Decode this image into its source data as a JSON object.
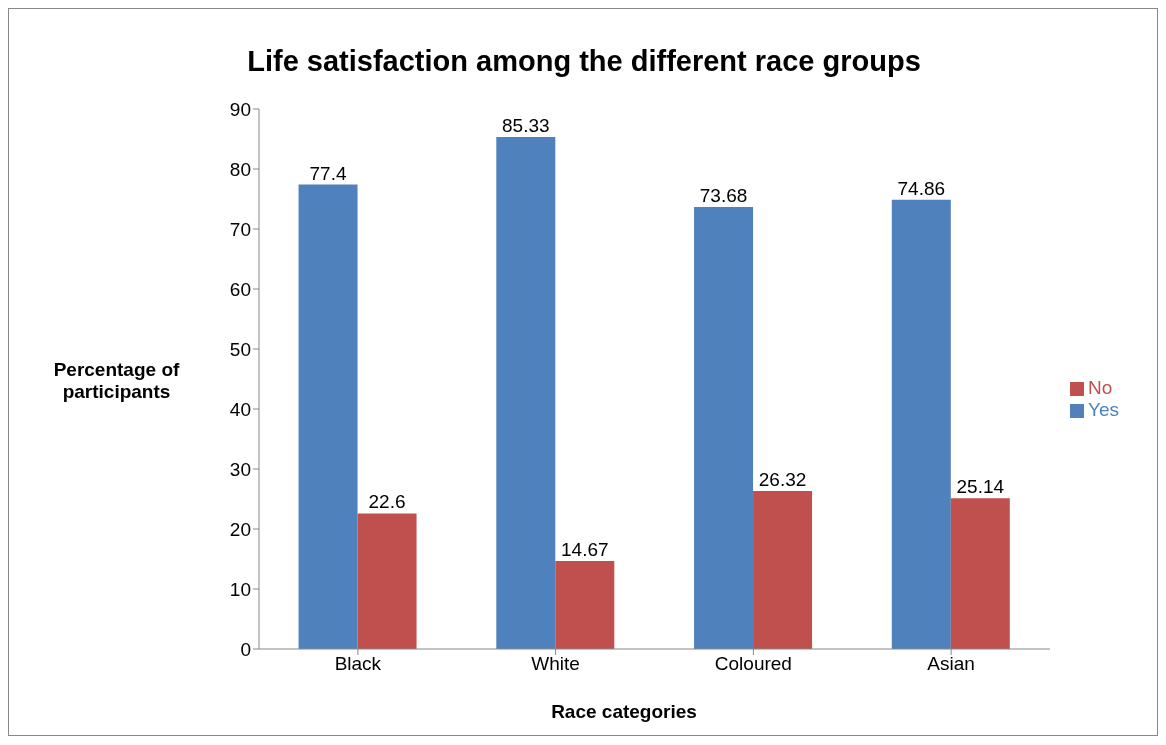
{
  "chart_data": {
    "type": "bar",
    "title": "Life satisfaction among the different race groups",
    "xlabel": "Race categories",
    "ylabel": "Percentage of participants",
    "categories": [
      "Black",
      "White",
      "Coloured",
      "Asian"
    ],
    "series": [
      {
        "name": "Yes",
        "color": "#4f81bd",
        "values": [
          77.4,
          85.33,
          73.68,
          74.86
        ]
      },
      {
        "name": "No",
        "color": "#c0504d",
        "values": [
          22.6,
          14.67,
          26.32,
          25.14
        ]
      }
    ],
    "ylim": [
      0,
      90
    ],
    "yticks": [
      0,
      10,
      20,
      30,
      40,
      50,
      60,
      70,
      80,
      90
    ],
    "data_labels": true,
    "legend": "right",
    "grid": false
  }
}
